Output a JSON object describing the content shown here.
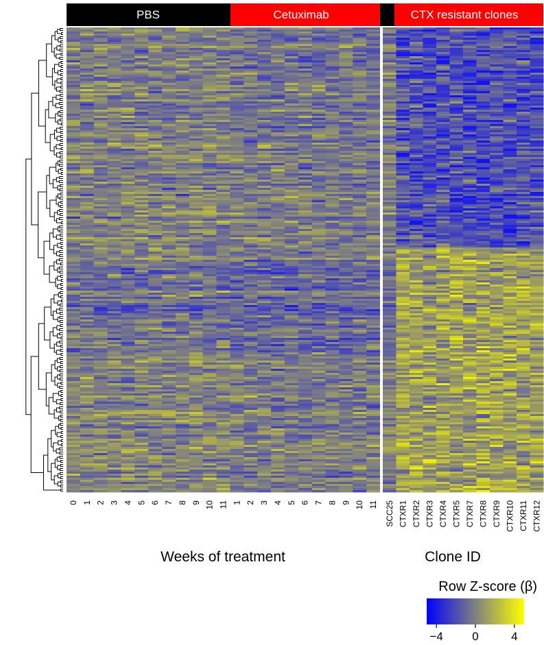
{
  "chart_data": {
    "type": "heatmap",
    "groups": [
      {
        "label": "PBS",
        "color": "#000000",
        "text_color": "#ffffff",
        "n_columns": 12
      },
      {
        "label": "Cetuximab",
        "color": "#ff0000",
        "text_color": "#ffffff",
        "n_columns": 11
      },
      {
        "label": "CTX resistant clones",
        "color": "#ff0000",
        "text_color": "#ffffff",
        "n_columns": 12
      }
    ],
    "columns_weeks": [
      "0",
      "1",
      "2",
      "3",
      "4",
      "5",
      "6",
      "7",
      "8",
      "9",
      "10",
      "11",
      "1",
      "2",
      "3",
      "4",
      "5",
      "6",
      "7",
      "8",
      "9",
      "10",
      "11"
    ],
    "columns_clones": [
      "SCC25",
      "CTXR1",
      "CTXR2",
      "CTXR3",
      "CTXR4",
      "CTXR5",
      "CTXR7",
      "CTXR8",
      "CTXR9",
      "CTXR10",
      "CTXR11",
      "CTXR12"
    ],
    "xlabel_weeks": "Weeks of treatment",
    "xlabel_clones": "Clone ID",
    "row_dendrogram": true,
    "legend": {
      "title": "Row Z-score (β)",
      "ticks": [
        {
          "value": -4,
          "label": "−4"
        },
        {
          "value": 0,
          "label": "0"
        },
        {
          "value": 4,
          "label": "4"
        }
      ],
      "range": [
        -5,
        5
      ],
      "colors": [
        "#0000ff",
        "#808080",
        "#ffff00"
      ]
    }
  }
}
